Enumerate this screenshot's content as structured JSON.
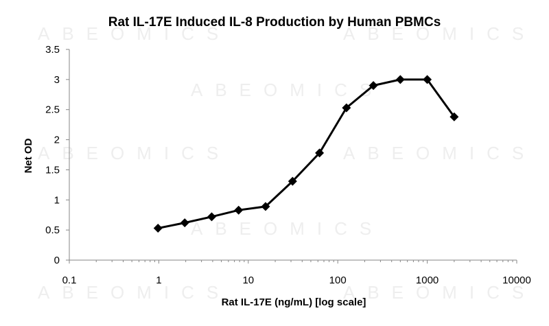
{
  "chart_data": {
    "type": "line",
    "title": "Rat IL-17E Induced IL-8 Production by Human PBMCs",
    "xlabel": "Rat IL-17E (ng/mL) [log scale]",
    "ylabel": "Net OD",
    "x_scale": "log",
    "xlim": [
      0.1,
      10000
    ],
    "ylim": [
      0,
      3.5
    ],
    "x_ticks": [
      "0.1",
      "1",
      "10",
      "100",
      "1000",
      "10000"
    ],
    "y_ticks": [
      "0",
      "0.5",
      "1",
      "1.5",
      "2",
      "2.5",
      "3",
      "3.5"
    ],
    "grid": false,
    "legend": "none",
    "marker": "diamond",
    "line_color": "#000000",
    "series": [
      {
        "x": [
          0.98,
          1.95,
          3.9,
          7.8,
          15.6,
          31.25,
          62.5,
          125,
          250,
          500,
          1000,
          2000
        ],
        "y": [
          0.53,
          0.62,
          0.72,
          0.83,
          0.89,
          1.31,
          1.78,
          2.53,
          2.9,
          3.0,
          3.0,
          2.38
        ]
      }
    ]
  },
  "watermark": {
    "text": "ABEOMICS"
  }
}
